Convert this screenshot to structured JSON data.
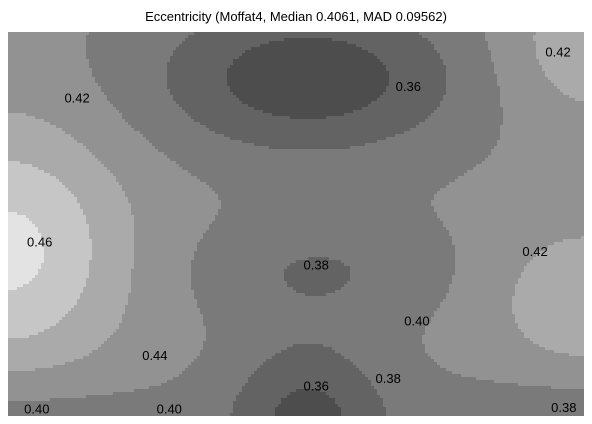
{
  "chart_data": {
    "type": "contour",
    "title": "Eccentricity (Moffat4, Median 0.4061, MAD 0.09562)",
    "levels": [
      0.36,
      0.38,
      0.4,
      0.42,
      0.44,
      0.46
    ],
    "level_colors": [
      "#4d4d4d",
      "#636363",
      "#7a7a7a",
      "#929292",
      "#aaaaaa",
      "#c6c6c6",
      "#e3e3e3"
    ],
    "contour_labels": [
      {
        "text": "0.42",
        "u": 0.955,
        "v": 0.055
      },
      {
        "text": "0.42",
        "u": 0.12,
        "v": 0.175
      },
      {
        "text": "0.36",
        "u": 0.695,
        "v": 0.145
      },
      {
        "text": "0.46",
        "u": 0.055,
        "v": 0.55
      },
      {
        "text": "0.42",
        "u": 0.915,
        "v": 0.575
      },
      {
        "text": "0.38",
        "u": 0.535,
        "v": 0.61
      },
      {
        "text": "0.40",
        "u": 0.71,
        "v": 0.755
      },
      {
        "text": "0.44",
        "u": 0.255,
        "v": 0.845
      },
      {
        "text": "0.38",
        "u": 0.66,
        "v": 0.905
      },
      {
        "text": "0.36",
        "u": 0.535,
        "v": 0.925
      },
      {
        "text": "0.40",
        "u": 0.05,
        "v": 0.985
      },
      {
        "text": "0.40",
        "u": 0.28,
        "v": 0.985
      },
      {
        "text": "0.38",
        "u": 0.965,
        "v": 0.98
      }
    ],
    "grid": false
  }
}
